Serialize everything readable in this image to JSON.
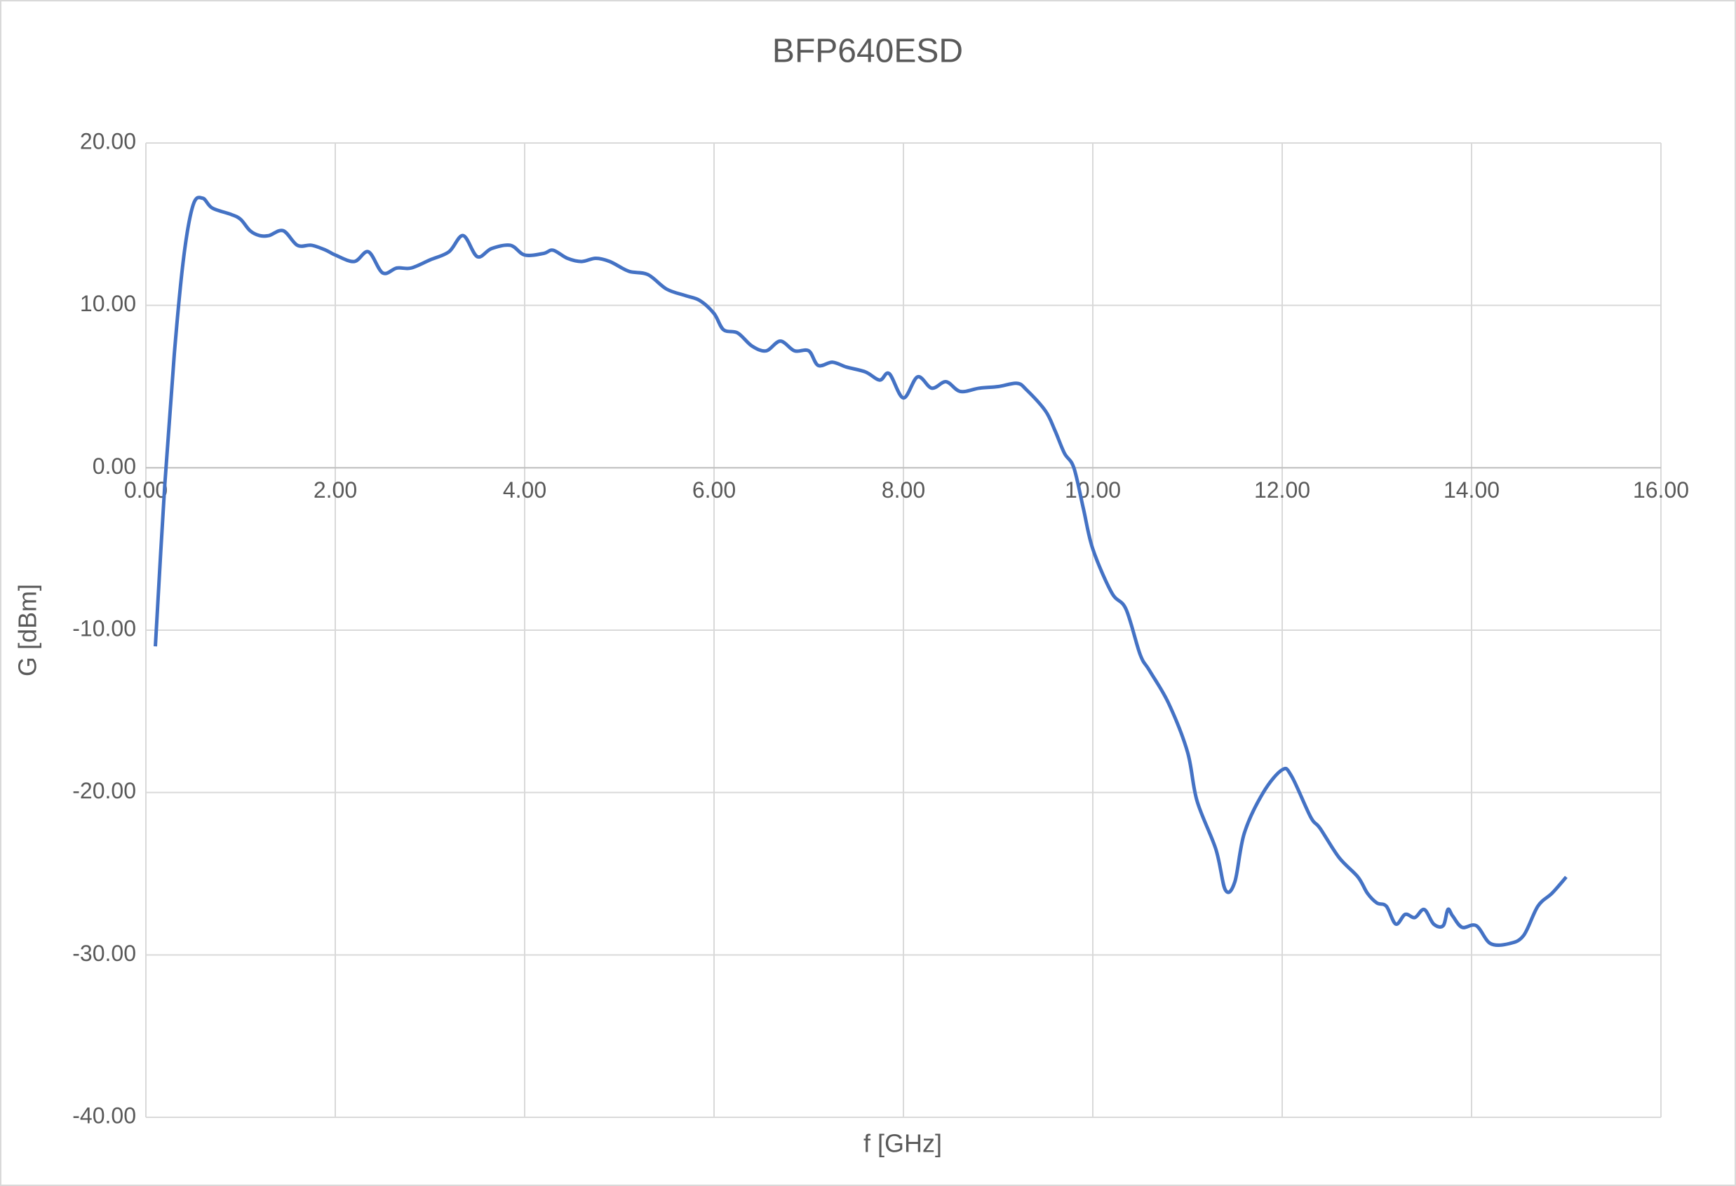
{
  "chart_data": {
    "type": "line",
    "title": "BFP640ESD",
    "x_label": "f [GHz]",
    "y_label": "G [dBm]",
    "x": [
      0.1,
      0.2,
      0.3,
      0.4,
      0.5,
      0.6,
      0.7,
      0.9,
      1.0,
      1.1,
      1.2,
      1.3,
      1.45,
      1.6,
      1.75,
      1.9,
      2.0,
      2.2,
      2.35,
      2.5,
      2.65,
      2.8,
      3.0,
      3.2,
      3.35,
      3.5,
      3.65,
      3.85,
      4.0,
      4.2,
      4.3,
      4.45,
      4.6,
      4.75,
      4.9,
      5.1,
      5.3,
      5.5,
      5.7,
      5.85,
      6.0,
      6.1,
      6.25,
      6.4,
      6.55,
      6.7,
      6.85,
      7.0,
      7.1,
      7.25,
      7.4,
      7.6,
      7.75,
      7.85,
      8.0,
      8.15,
      8.3,
      8.45,
      8.6,
      8.8,
      9.0,
      9.2,
      9.3,
      9.5,
      9.6,
      9.7,
      9.8,
      9.9,
      10.0,
      10.2,
      10.35,
      10.5,
      10.6,
      10.8,
      11.0,
      11.1,
      11.3,
      11.4,
      11.5,
      11.6,
      11.8,
      12.0,
      12.1,
      12.3,
      12.4,
      12.6,
      12.8,
      12.9,
      13.0,
      13.1,
      13.2,
      13.3,
      13.4,
      13.5,
      13.6,
      13.7,
      13.75,
      13.8,
      13.9,
      14.05,
      14.2,
      14.4,
      14.55,
      14.7,
      14.85,
      15.0
    ],
    "series": [
      {
        "name": "G",
        "color": "#4472c4",
        "values": [
          -11,
          -1,
          7,
          13,
          16.2,
          16.6,
          16.0,
          15.6,
          15.3,
          14.6,
          14.3,
          14.3,
          14.6,
          13.7,
          13.7,
          13.4,
          13.1,
          12.7,
          13.3,
          12.0,
          12.3,
          12.3,
          12.8,
          13.3,
          14.3,
          13.0,
          13.5,
          13.7,
          13.1,
          13.2,
          13.4,
          12.9,
          12.7,
          12.9,
          12.7,
          12.1,
          11.9,
          11.0,
          10.6,
          10.3,
          9.5,
          8.5,
          8.3,
          7.5,
          7.2,
          7.8,
          7.2,
          7.2,
          6.3,
          6.5,
          6.2,
          5.9,
          5.4,
          5.8,
          4.3,
          5.6,
          4.9,
          5.3,
          4.7,
          4.9,
          5.0,
          5.2,
          4.8,
          3.5,
          2.3,
          0.9,
          0,
          -2.5,
          -5.0,
          -7.7,
          -8.7,
          -11.5,
          -12.5,
          -14.5,
          -17.5,
          -20.5,
          -23.5,
          -26,
          -25.5,
          -22.5,
          -20,
          -18.6,
          -19,
          -21.5,
          -22.2,
          -24.0,
          -25.2,
          -26.2,
          -26.8,
          -27,
          -28.1,
          -27.5,
          -27.7,
          -27.2,
          -28.1,
          -28.2,
          -27.2,
          -27.6,
          -28.3,
          -28.2,
          -29.3,
          -29.3,
          -28.8,
          -27.0,
          -26.2,
          -25.2
        ]
      }
    ],
    "xlim": [
      0,
      16
    ],
    "ylim": [
      -40,
      20
    ],
    "xticks": [
      {
        "value": 0,
        "label": "0.00"
      },
      {
        "value": 2,
        "label": "2.00"
      },
      {
        "value": 4,
        "label": "4.00"
      },
      {
        "value": 6,
        "label": "6.00"
      },
      {
        "value": 8,
        "label": "8.00"
      },
      {
        "value": 10,
        "label": "10.00"
      },
      {
        "value": 12,
        "label": "12.00"
      },
      {
        "value": 14,
        "label": "14.00"
      },
      {
        "value": 16,
        "label": "16.00"
      }
    ],
    "yticks": [
      {
        "value": -40,
        "label": "-40.00"
      },
      {
        "value": -30,
        "label": "-30.00"
      },
      {
        "value": -20,
        "label": "-20.00"
      },
      {
        "value": -10,
        "label": "-10.00"
      },
      {
        "value": 0,
        "label": "0.00"
      },
      {
        "value": 10,
        "label": "10.00"
      },
      {
        "value": 20,
        "label": "20.00"
      }
    ],
    "grid": true
  }
}
